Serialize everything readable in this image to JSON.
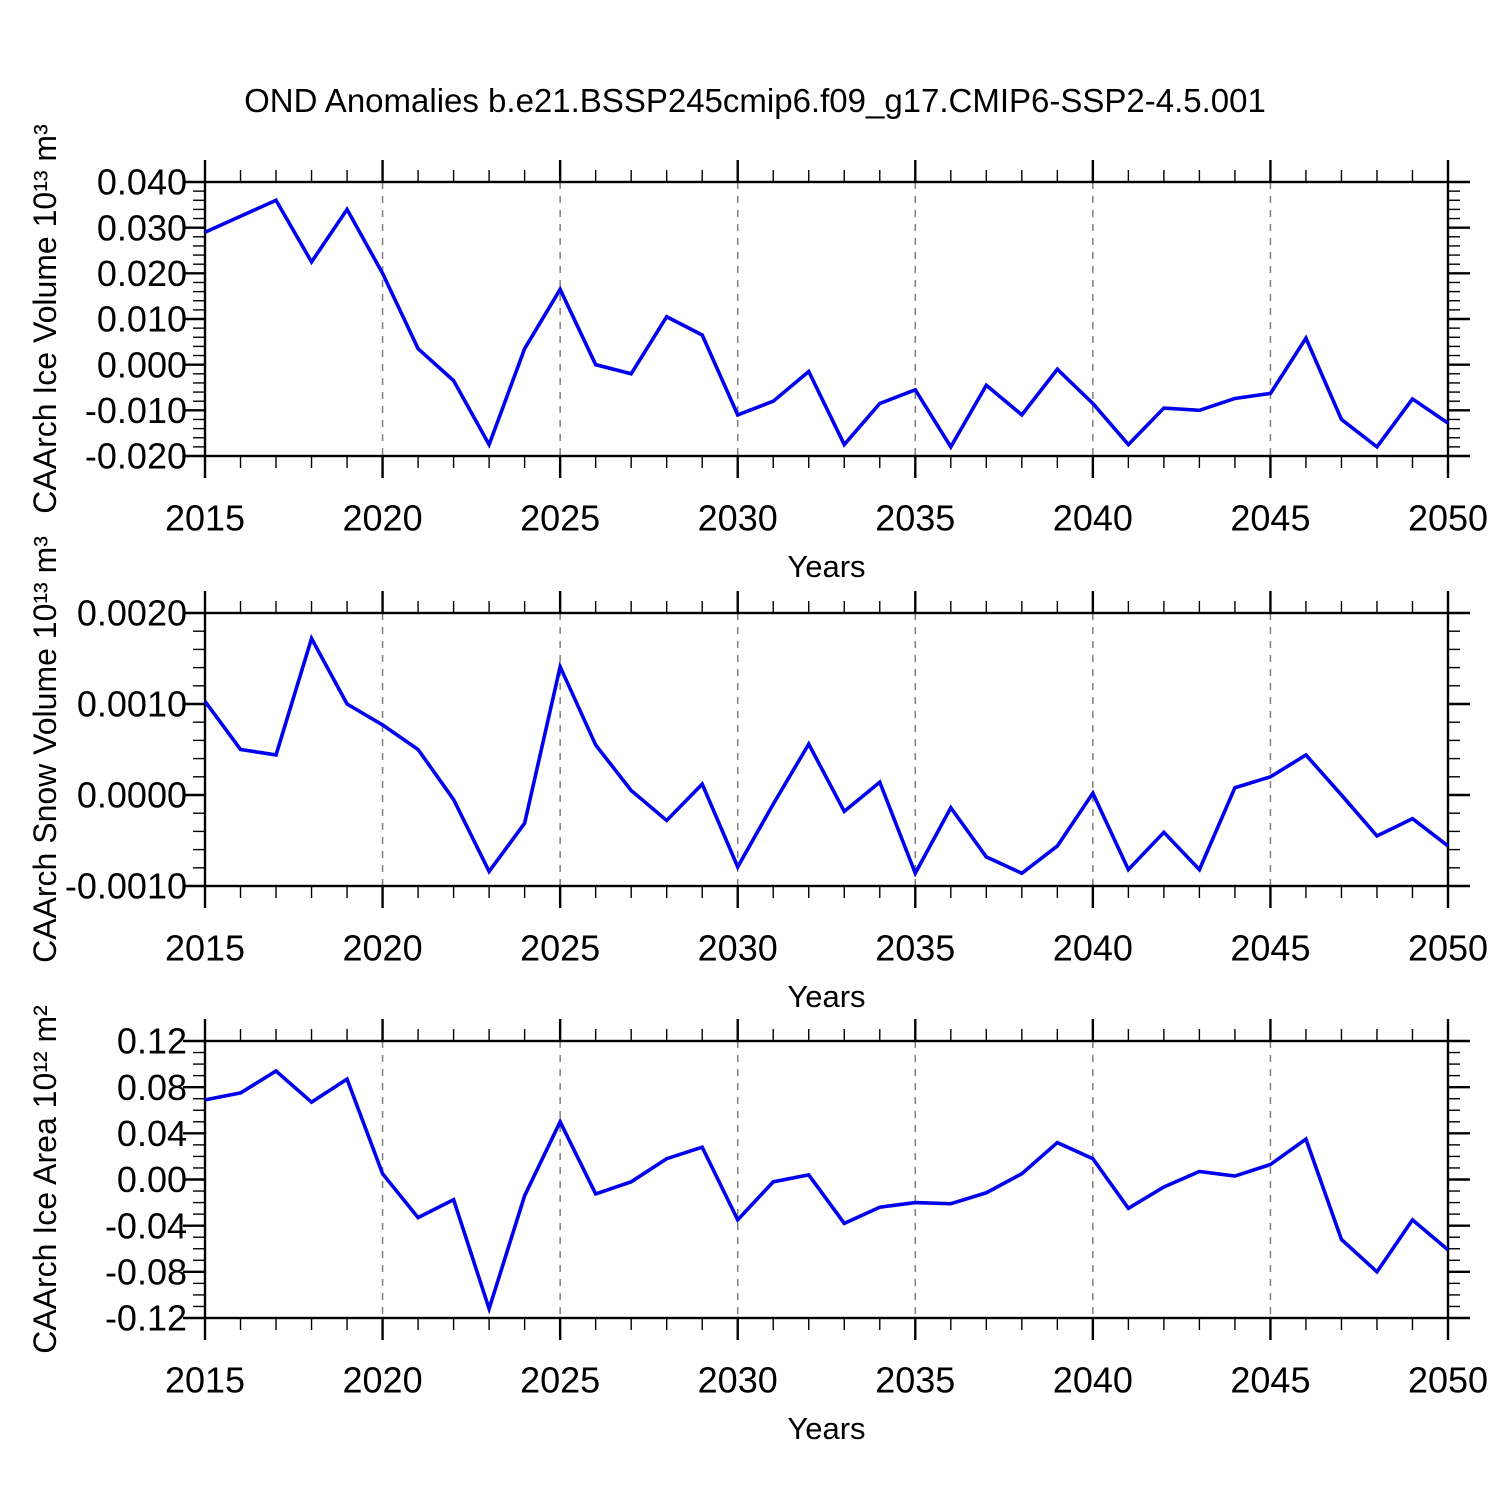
{
  "chart_data": {
    "type": "line",
    "title": "OND Anomalies b.e21.BSSP245cmip6.f09_g17.CMIP6-SSP2-4.5.001",
    "xlabel": "Years",
    "line_color": "#0000EE",
    "gridline_color": "#7f7f7f",
    "x": [
      2015,
      2016,
      2017,
      2018,
      2019,
      2020,
      2021,
      2022,
      2023,
      2024,
      2025,
      2026,
      2027,
      2028,
      2029,
      2030,
      2031,
      2032,
      2033,
      2034,
      2035,
      2036,
      2037,
      2038,
      2039,
      2040,
      2041,
      2042,
      2043,
      2044,
      2045,
      2046,
      2047,
      2048,
      2049,
      2050
    ],
    "xlim": [
      2015,
      2050
    ],
    "x_major_ticks": [
      2015,
      2020,
      2025,
      2030,
      2035,
      2040,
      2045,
      2050
    ],
    "x_major_tick_labels": [
      "2015",
      "2020",
      "2025",
      "2030",
      "2035",
      "2040",
      "2045",
      "2050"
    ],
    "gridline_years": [
      2020,
      2025,
      2030,
      2035,
      2040,
      2045
    ],
    "grid": "vertical-dashed-at-major-years",
    "legend": "none",
    "panels": [
      {
        "name": "caarch-ice-volume-panel",
        "ylabel": "CAArch Ice Volume 10¹³ m³",
        "ylim": [
          -0.02,
          0.04
        ],
        "ytick_values": [
          0.04,
          0.03,
          0.02,
          0.01,
          0.0,
          -0.01,
          -0.02
        ],
        "ytick_labels": [
          "0.040",
          "0.030",
          "0.020",
          "0.010",
          "0.000",
          "-0.010",
          "-0.020"
        ],
        "y_minor_step": 0.002,
        "values": [
          0.029,
          0.0325,
          0.036,
          0.0225,
          0.034,
          0.02,
          0.0035,
          -0.0035,
          -0.0175,
          0.0035,
          0.0165,
          0.0,
          -0.002,
          0.0105,
          0.0065,
          -0.011,
          -0.008,
          -0.0015,
          -0.0175,
          -0.0085,
          -0.0055,
          -0.018,
          -0.0045,
          -0.011,
          -0.001,
          -0.0085,
          -0.0175,
          -0.0095,
          -0.01,
          -0.0074,
          -0.0063,
          0.0058,
          -0.012,
          -0.018,
          -0.0075,
          -0.0128
        ]
      },
      {
        "name": "caarch-snow-volume-panel",
        "ylabel": "CAArch Snow Volume 10¹³ m³",
        "ylim": [
          -0.001,
          0.002
        ],
        "ytick_values": [
          0.002,
          0.001,
          0.0,
          -0.001
        ],
        "ytick_labels": [
          "0.0020",
          "0.0010",
          "0.0000",
          "-0.0010"
        ],
        "y_minor_step": 0.0002,
        "values": [
          0.00103,
          0.0005,
          0.00044,
          0.00172,
          0.001,
          0.00077,
          0.0005,
          -5e-05,
          -0.00084,
          -0.00031,
          0.00141,
          0.00055,
          5e-05,
          -0.00028,
          0.00012,
          -0.00079,
          -0.0001,
          0.00056,
          -0.00018,
          0.00014,
          -0.00086,
          -0.00014,
          -0.00068,
          -0.00086,
          -0.00056,
          2e-05,
          -0.00082,
          -0.00041,
          -0.00082,
          8e-05,
          0.0002,
          0.00044,
          0.0,
          -0.00045,
          -0.00026,
          -0.00056
        ]
      },
      {
        "name": "caarch-ice-area-panel",
        "ylabel": "CAArch Ice Area 10¹² m²",
        "ylim": [
          -0.12,
          0.12
        ],
        "ytick_values": [
          0.12,
          0.08,
          0.04,
          0.0,
          -0.04,
          -0.08,
          -0.12
        ],
        "ytick_labels": [
          "0.12",
          "0.08",
          "0.04",
          "0.00",
          "-0.04",
          "-0.08",
          "-0.12"
        ],
        "y_minor_step": 0.01,
        "values": [
          0.069,
          0.075,
          0.094,
          0.067,
          0.087,
          0.005,
          -0.033,
          -0.0175,
          -0.112,
          -0.014,
          0.05,
          -0.0125,
          -0.002,
          0.018,
          0.028,
          -0.035,
          -0.002,
          0.004,
          -0.038,
          -0.024,
          -0.02,
          -0.021,
          -0.0115,
          0.005,
          0.032,
          0.018,
          -0.025,
          -0.0065,
          0.007,
          0.003,
          0.013,
          0.035,
          -0.052,
          -0.08,
          -0.035,
          -0.061
        ]
      }
    ]
  }
}
